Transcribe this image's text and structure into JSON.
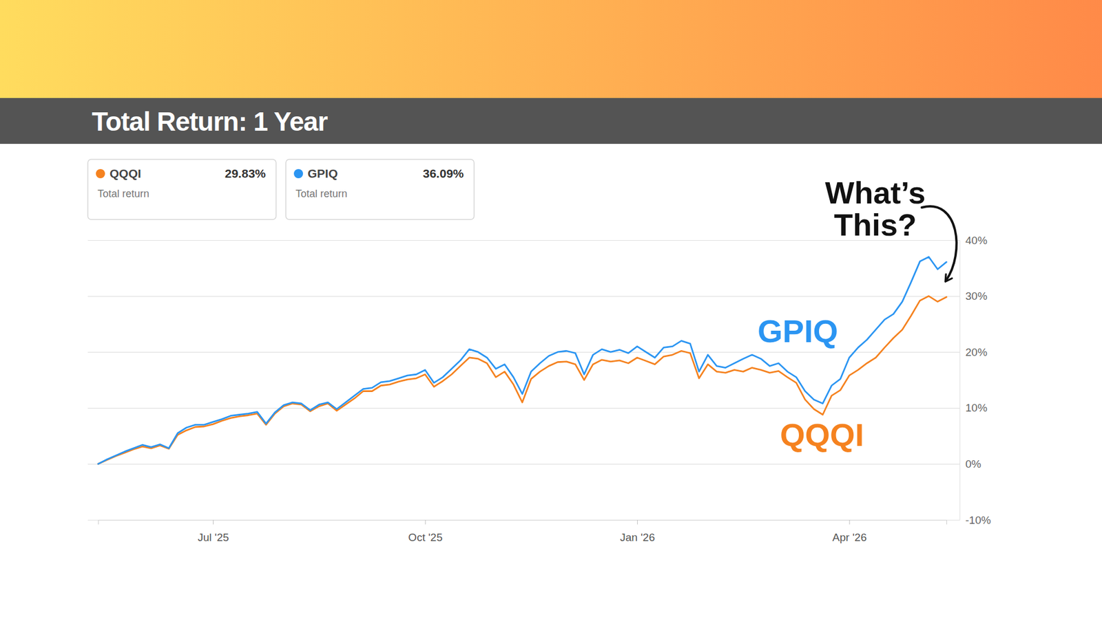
{
  "chart_data": {
    "type": "line",
    "title": "Total Return: 1 Year",
    "annotation": "What’s This?",
    "summary_caption": "Total return",
    "categories": [
      null,
      null,
      null,
      null,
      null,
      null,
      null,
      null,
      null,
      null,
      null,
      null,
      null,
      "Jul '25",
      null,
      null,
      null,
      null,
      null,
      null,
      null,
      null,
      null,
      null,
      null,
      null,
      null,
      null,
      null,
      null,
      null,
      null,
      null,
      null,
      null,
      null,
      null,
      "Oct '25",
      null,
      null,
      null,
      null,
      null,
      null,
      null,
      null,
      null,
      null,
      null,
      null,
      null,
      null,
      null,
      null,
      null,
      null,
      null,
      null,
      null,
      null,
      null,
      "Jan '26",
      null,
      null,
      null,
      null,
      null,
      null,
      null,
      null,
      null,
      null,
      null,
      null,
      null,
      null,
      null,
      null,
      null,
      null,
      null,
      null,
      null,
      null,
      null,
      "Apr '26",
      null,
      null,
      null,
      null,
      null,
      null,
      null,
      null,
      null,
      null,
      null
    ],
    "series": [
      {
        "name": "QQQI",
        "color": "#f5821f",
        "total_return": 29.83,
        "total_return_label": "29.83%",
        "values": [
          0,
          0.7,
          1.4,
          2.0,
          2.6,
          3.1,
          2.8,
          3.3,
          2.7,
          5.2,
          6.0,
          6.6,
          6.7,
          7.1,
          7.7,
          8.2,
          8.5,
          8.7,
          9.0,
          7.0,
          9.0,
          10.3,
          10.8,
          10.6,
          9.4,
          10.3,
          10.8,
          9.5,
          10.6,
          11.7,
          13.0,
          13.0,
          14.0,
          14.2,
          14.7,
          15.1,
          15.3,
          16.0,
          13.8,
          14.8,
          16.0,
          17.5,
          19.0,
          18.8,
          18.0,
          15.5,
          16.5,
          14.2,
          11.0,
          15.2,
          16.5,
          17.5,
          18.2,
          18.3,
          17.8,
          15.0,
          17.8,
          18.6,
          18.3,
          18.5,
          18.0,
          19.0,
          18.4,
          17.8,
          19.2,
          19.5,
          20.2,
          19.8,
          15.3,
          17.8,
          16.5,
          16.3,
          16.8,
          16.5,
          17.2,
          16.8,
          16.3,
          16.6,
          15.5,
          14.5,
          11.5,
          9.8,
          8.8,
          12.2,
          13.2,
          15.8,
          16.8,
          18.0,
          19.0,
          20.8,
          22.5,
          24.0,
          26.5,
          29.2,
          30.0,
          29.0,
          29.83
        ]
      },
      {
        "name": "GPIQ",
        "color": "#2b95f2",
        "total_return": 36.09,
        "total_return_label": "36.09%",
        "values": [
          0,
          0.8,
          1.5,
          2.2,
          2.8,
          3.4,
          3.0,
          3.5,
          2.8,
          5.5,
          6.5,
          7.0,
          7.0,
          7.5,
          8.0,
          8.6,
          8.8,
          9.0,
          9.3,
          7.2,
          9.2,
          10.5,
          11.0,
          10.8,
          9.6,
          10.6,
          11.0,
          9.8,
          11.0,
          12.2,
          13.4,
          13.6,
          14.6,
          14.8,
          15.3,
          15.8,
          16.0,
          16.8,
          14.5,
          15.5,
          17.0,
          18.5,
          20.5,
          20.0,
          19.0,
          17.0,
          17.8,
          15.5,
          12.5,
          16.5,
          18.0,
          19.3,
          20.0,
          20.2,
          19.8,
          16.0,
          19.5,
          20.5,
          20.0,
          20.4,
          19.8,
          21.0,
          20.0,
          19.0,
          20.8,
          21.0,
          22.0,
          21.5,
          16.5,
          19.5,
          17.5,
          17.2,
          18.0,
          18.8,
          19.5,
          18.8,
          17.5,
          18.0,
          16.5,
          15.5,
          13.0,
          11.5,
          10.8,
          14.0,
          15.2,
          19.0,
          20.8,
          22.2,
          24.0,
          25.8,
          26.8,
          29.0,
          32.5,
          36.2,
          37.0,
          34.8,
          36.09
        ]
      }
    ],
    "ylim": [
      -10,
      40
    ],
    "yticks": [
      {
        "value": -10,
        "label": "-10%"
      },
      {
        "value": 0,
        "label": "0%"
      },
      {
        "value": 10,
        "label": "10%"
      },
      {
        "value": 20,
        "label": "20%"
      },
      {
        "value": 30,
        "label": "30%"
      },
      {
        "value": 40,
        "label": "40%"
      }
    ],
    "grid": true,
    "legend": "top-left"
  }
}
